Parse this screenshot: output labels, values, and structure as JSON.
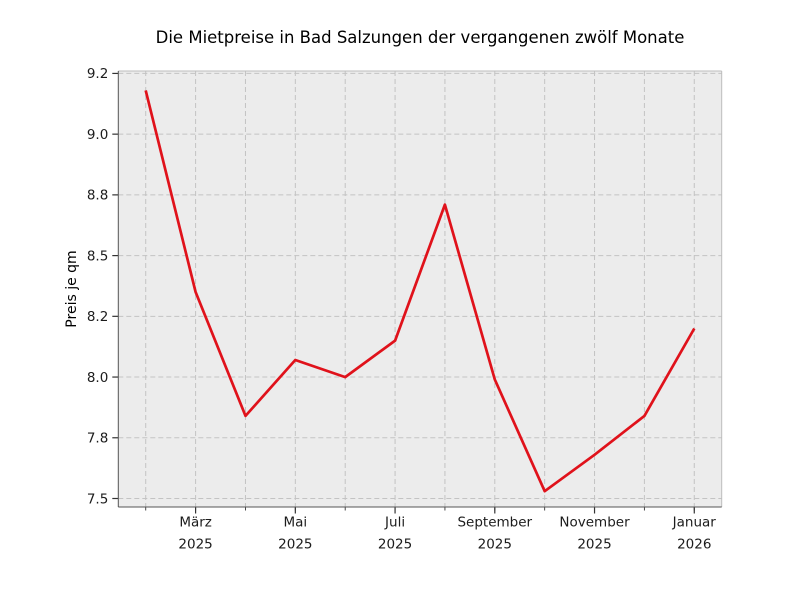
{
  "chart_data": {
    "type": "line",
    "title": "Die Mietpreise in Bad Salzungen der vergangenen zwölf Monate",
    "ylabel": "Preis je qm",
    "xlabel": "",
    "n_points": 12,
    "x": [
      0,
      1,
      2,
      3,
      4,
      5,
      6,
      7,
      8,
      9,
      10,
      11
    ],
    "values": [
      9.18,
      8.35,
      7.84,
      8.07,
      8.0,
      8.15,
      8.71,
      7.99,
      7.53,
      7.68,
      7.84,
      8.2
    ],
    "series": [
      {
        "name": "Preis je qm",
        "values": [
          9.18,
          8.35,
          7.84,
          8.07,
          8.0,
          8.15,
          8.71,
          7.99,
          7.53,
          7.68,
          7.84,
          8.2
        ]
      }
    ],
    "xticks": [
      {
        "pos": 1,
        "line1": "März",
        "line2": "2025"
      },
      {
        "pos": 3,
        "line1": "Mai",
        "line2": "2025"
      },
      {
        "pos": 5,
        "line1": "Juli",
        "line2": "2025"
      },
      {
        "pos": 7,
        "line1": "September",
        "line2": "2025"
      },
      {
        "pos": 9,
        "line1": "November",
        "line2": "2025"
      },
      {
        "pos": 11,
        "line1": "Januar",
        "line2": "2026"
      }
    ],
    "yticks": [
      {
        "value": 7.5,
        "label": "7.5"
      },
      {
        "value": 7.75,
        "label": "7.8"
      },
      {
        "value": 8.0,
        "label": "8.0"
      },
      {
        "value": 8.25,
        "label": "8.2"
      },
      {
        "value": 8.5,
        "label": "8.5"
      },
      {
        "value": 8.75,
        "label": "8.8"
      },
      {
        "value": 9.0,
        "label": "9.0"
      },
      {
        "value": 9.25,
        "label": "9.2"
      }
    ],
    "ylim": [
      7.465,
      9.26
    ],
    "xlim": [
      -0.55,
      11.55
    ],
    "grid": true,
    "grid_style": "dashed",
    "legend": "none",
    "colors": {
      "line": "#e0121b",
      "plot_bg": "#ececec",
      "grid": "#c3c3c3",
      "tick_text": "#1c1c1c",
      "title_text": "#000000",
      "spine_dark": "#555555",
      "spine_light": "#bdbdbd",
      "tick_mark": "#333333"
    }
  }
}
